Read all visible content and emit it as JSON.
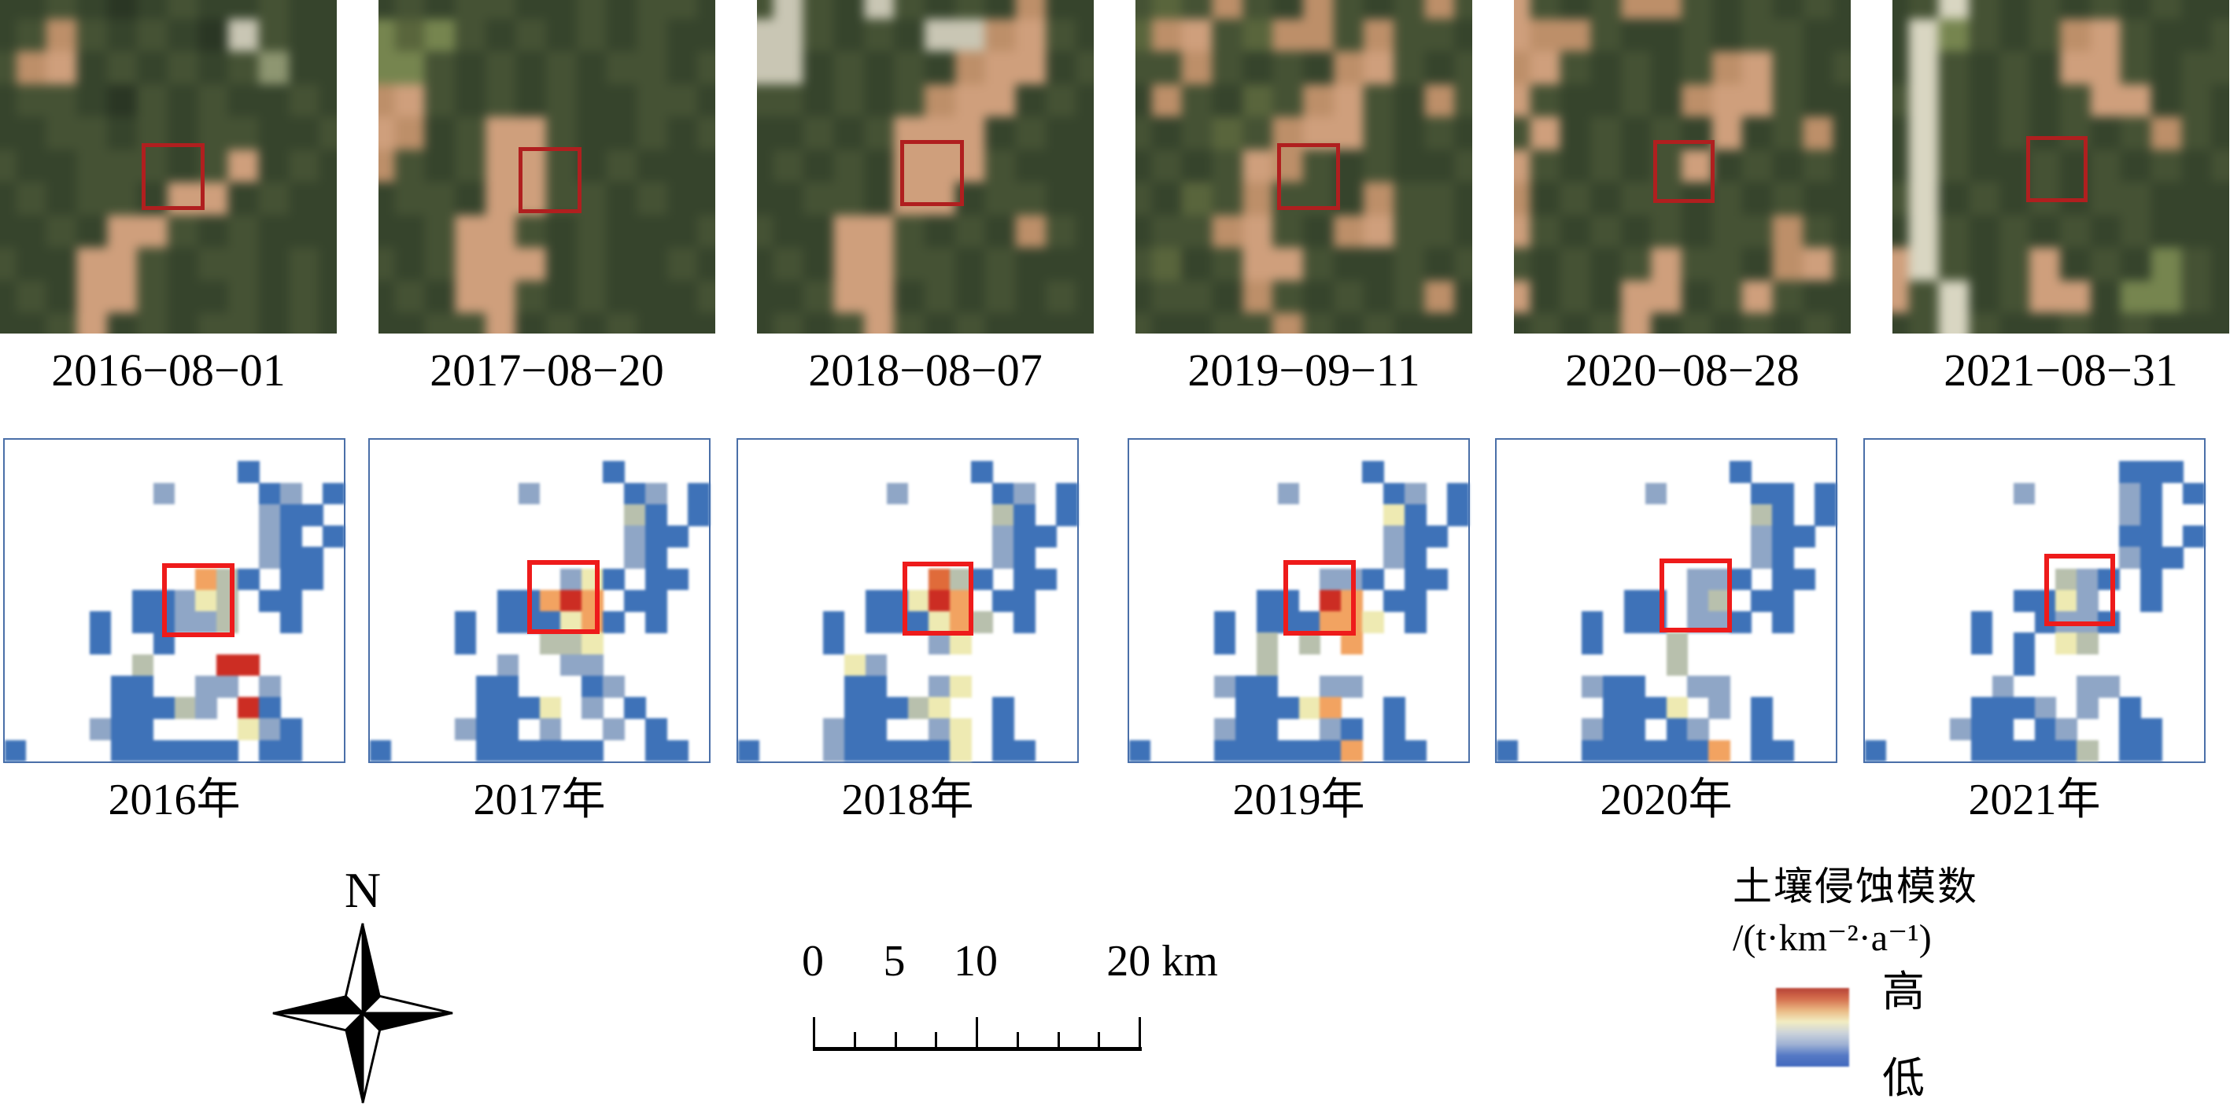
{
  "satellite_row": {
    "red_box_color": "#b01f1f",
    "palette": {
      "k": "#2a3624",
      "d": "#36442c",
      "e": "#455234",
      "f": "#59653c",
      "t": "#bd8f69",
      "s": "#cf9f7c",
      "w": "#c9c6b4",
      "p": "#8e9671",
      "r": "#d9d6c2",
      "l": "#76854f"
    },
    "panels": [
      {
        "date": "2016−08−01",
        "red_box": {
          "left_pct": 42.0,
          "top_pct": 43.0,
          "width_pct": 16.5,
          "height_pct": 17.5
        },
        "rows": [
          "ddedkdeddedd",
          "detededkwedd",
          "etsdededepdd",
          "deedkededded",
          "ddeededeedde",
          "eddeeedesded",
          "dedeedssdedd",
          "ddedssededdd",
          "eddssedeeded",
          "dedsseddeded",
          "ddesdedeeded"
        ]
      },
      {
        "date": "2017−08−20",
        "red_box": {
          "left_pct": 41.5,
          "top_pct": 44.0,
          "width_pct": 16.5,
          "height_pct": 17.5
        },
        "rows": [
          "dedeeddedeed",
          "lflededededd",
          "lledededeede",
          "tsedededdeed",
          "stdesseddede",
          "tedessededdd",
          "deedsseededd",
          "ddessededdde",
          "edesssdedded",
          "dedssededdde",
          "ddeesdededdd"
        ]
      },
      {
        "date": "2018−08−07",
        "red_box": {
          "left_pct": 42.5,
          "top_pct": 42.0,
          "width_pct": 16.5,
          "height_pct": 17.5
        },
        "rows": [
          "ewedwededtdd",
          "wwededwwtsed",
          "wwdededtssde",
          "eededetssded",
          "ddedesssdedd",
          "dededssseddd",
          "ddeedssdeedd",
          "eddssededted",
          "dedsseededdd",
          "ddessdededed",
          "dedesededddd"
        ]
      },
      {
        "date": "2019−09−11",
        "red_box": {
          "left_pct": 42.0,
          "top_pct": 43.0,
          "width_pct": 16.5,
          "height_pct": 17.5
        },
        "rows": [
          "efetedtedete",
          "ftseftteteed",
          "eetededtsede",
          "dtedfetsedte",
          "edefetsseded",
          "dedestededde",
          "edfeteedteed",
          "deetsedtseed",
          "efdesseddede",
          "deedtededetd",
          "eddeetededdd"
        ]
      },
      {
        "date": "2020−08−28",
        "red_box": {
          "left_pct": 41.4,
          "top_pct": 42.0,
          "width_pct": 15.9,
          "height_pct": 16.5
        },
        "rows": [
          "sedettededed",
          "stteddedeedd",
          "tsededetsede",
          "seddedtssedd",
          "esdededsdetd",
          "sededesdeded",
          "tdedeedededd",
          "sedededeeted",
          "ededeseedtse",
          "sdedssdesedd",
          "dedesdededed"
        ]
      },
      {
        "date": "2021−08−31",
        "red_box": {
          "left_pct": 39.7,
          "top_pct": 40.8,
          "width_pct": 16.0,
          "height_pct": 17.4
        },
        "rows": [
          "derededededd",
          "drledetsedde",
          "drededssedee",
          "erededessded",
          "dredededeted",
          "dreddededede",
          "erdededeeddd",
          "drededededdd",
          "sredesdedled",
          "serdessdlled",
          "dereddededdd"
        ]
      }
    ]
  },
  "erosion_row": {
    "border_color": "#4a6fa8",
    "red_box_color": "#ee1b1b",
    "palette": {
      "B": "#3e72b8",
      "b": "#8fa6c6",
      "g": "#b8c0ad",
      "y": "#eeeab2",
      "o": "#f2a361",
      "O": "#e06b3a",
      "r": "#cc2d23"
    },
    "maps": [
      {
        "year": "2016年",
        "red_box": {
          "left_pct": 46.5,
          "top_pct": 38.5,
          "width_pct": 18.5,
          "height_pct": 20.0
        },
        "rows": [
          "................",
          "...........B....",
          ".......b....Bb.B",
          "............bBB.",
          "............bB.B",
          "............bBB.",
          ".........ogB.BB.",
          "......BBbyg.BB..",
          "....B.BBbbg..B..",
          "....B..B........",
          "......g...rr....",
          ".....BB..bb.b...",
          ".....BBBgb.rB...",
          "....bBB....ybB..",
          "B....BBBBBB.BB.."
        ]
      },
      {
        "year": "2017年",
        "red_box": {
          "left_pct": 46.5,
          "top_pct": 37.5,
          "width_pct": 18.5,
          "height_pct": 20.0
        },
        "rows": [
          "................",
          "...........B....",
          ".......b....Bb.B",
          "............gB.B",
          "............bBB.",
          "............bB..",
          ".........byB.BB.",
          "......BBoro.BB..",
          "....B.BBByoB.B..",
          "....B...ggy.....",
          "......b..bb.....",
          ".....BB...Bb....",
          ".....BBBy.b.B...",
          "....bBB.b..b.B..",
          "B....BBBBBB..BB."
        ]
      },
      {
        "year": "2018年",
        "red_box": {
          "left_pct": 48.5,
          "top_pct": 38.0,
          "width_pct": 18.0,
          "height_pct": 20.0
        },
        "rows": [
          "................",
          "...........B....",
          ".......b....Bb.B",
          "............gB.B",
          "............bBB.",
          "............bB..",
          ".........OgB.BB.",
          "......BByro.BB..",
          "....B.BBByog.B..",
          "....B....by.....",
          ".....yb.........",
          ".....BB..by.....",
          ".....BBBgy..B...",
          "....bBB..by.B...",
          "B...bBBBBBy.BB.."
        ]
      },
      {
        "year": "2019年",
        "red_box": {
          "left_pct": 45.5,
          "top_pct": 37.5,
          "width_pct": 18.5,
          "height_pct": 20.5
        },
        "rows": [
          "................",
          "...........B....",
          ".......b....Bb.B",
          "............yB.B",
          "............bBB.",
          "............bB..",
          ".........bbB.BB.",
          "......BB.ro.BB..",
          "....B.BBBooy.B..",
          "....B.g.g.o.....",
          "......g.........",
          "....bBB..bb.....",
          ".....BBByo..B...",
          "....bBB..bB.B...",
          "B...BBBBBBo.BB.."
        ]
      },
      {
        "year": "2020年",
        "red_box": {
          "left_pct": 48.0,
          "top_pct": 37.0,
          "width_pct": 18.5,
          "height_pct": 20.0
        },
        "rows": [
          "................",
          "...........B....",
          ".......b....BB.B",
          "............gB.B",
          "............bBB.",
          "............bB..",
          ".........bbB.BB.",
          "......BB.bg.BB..",
          "....B.BB.bbB.B..",
          "....B...g.......",
          "........g.......",
          "....bBB..bb.....",
          ".....BBBy.b.B...",
          "....bBB.Bb..B...",
          "B...BBBBBBo.BB.."
        ]
      },
      {
        "year": "2021年",
        "red_box": {
          "left_pct": 53.0,
          "top_pct": 35.5,
          "width_pct": 18.0,
          "height_pct": 19.5
        },
        "rows": [
          "................",
          "............BBB.",
          ".......b....bB.B",
          "............bB..",
          "............BB.B",
          "............bBB.",
          ".........gbB.B..",
          ".......BByb..B..",
          ".....B..BbbB....",
          ".....B.B.yg.....",
          ".......B........",
          "......b...bb....",
          ".....BBBb.b.B...",
          "....bBB.Bb..BB..",
          "B....BBBBBg.BB.."
        ]
      }
    ]
  },
  "north_arrow": {
    "label": "N"
  },
  "scale_bar": {
    "length_km": 20,
    "minor_step_km": 2.5,
    "major_ticks_km": [
      0,
      10,
      20
    ],
    "labels": [
      {
        "text": "0",
        "km": 0
      },
      {
        "text": "5",
        "km": 5
      },
      {
        "text": "10",
        "km": 10
      },
      {
        "text": "20 km",
        "km": 20
      }
    ]
  },
  "legend": {
    "title_line1": "土壤侵蚀模数",
    "title_line2": "/(t·km⁻²·a⁻¹)",
    "high_label": "高",
    "low_label": "低",
    "gradient": [
      "#b84236",
      "#d5714f",
      "#eab984",
      "#f2edc2",
      "#ccd3da",
      "#9fb2d4",
      "#5579c5",
      "#4268bd"
    ]
  }
}
